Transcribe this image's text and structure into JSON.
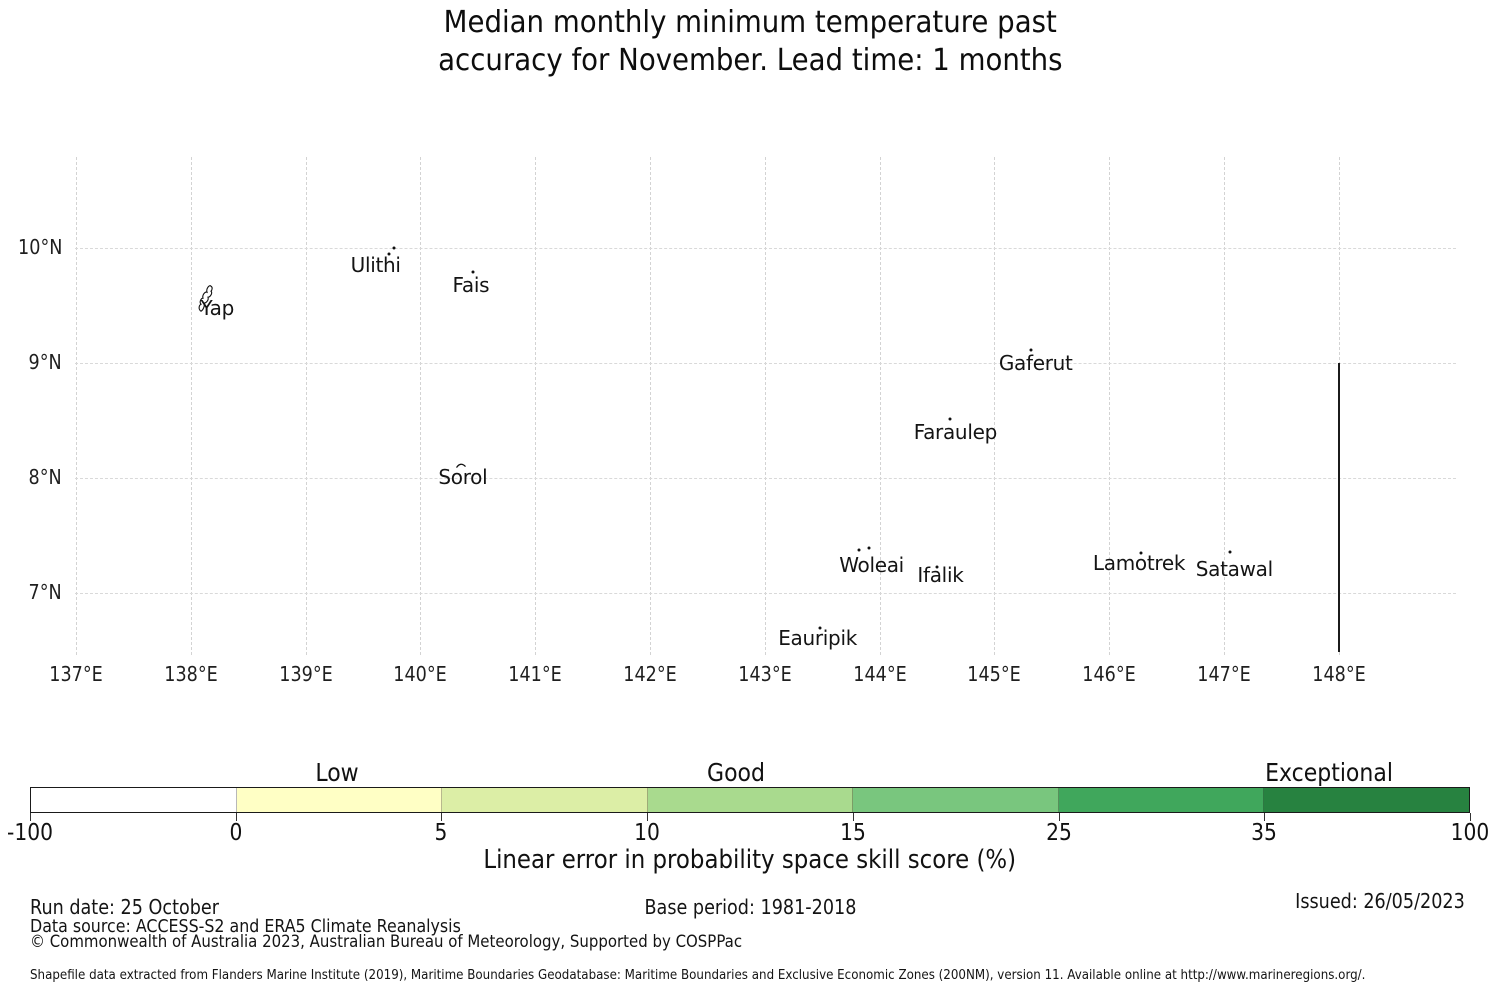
{
  "title": {
    "line1": "Median monthly minimum temperature past",
    "line2": "accuracy for November. Lead time: 1 months"
  },
  "chart_data": {
    "type": "map",
    "title": "Median monthly minimum temperature past accuracy for November. Lead time: 1 months",
    "x_ticks": [
      "137°E",
      "138°E",
      "139°E",
      "140°E",
      "141°E",
      "142°E",
      "143°E",
      "144°E",
      "145°E",
      "146°E",
      "147°E",
      "148°E"
    ],
    "y_ticks": [
      "10°N",
      "9°N",
      "8°N",
      "7°N"
    ],
    "lon_range": [
      137,
      148
    ],
    "lat_range": [
      7,
      10
    ],
    "grid": true,
    "islands": [
      {
        "name": "Yap",
        "label": {
          "lon": 138.23,
          "lat": 9.48
        },
        "shape": "yap-outline",
        "shape_pos": {
          "lon": 138.13,
          "lat": 9.53
        },
        "dots": []
      },
      {
        "name": "Ulithi",
        "label": {
          "lon": 139.61,
          "lat": 9.85
        },
        "dots": [
          {
            "lon": 139.77,
            "lat": 10.0
          },
          {
            "lon": 139.73,
            "lat": 9.95
          }
        ]
      },
      {
        "name": "Fais",
        "label": {
          "lon": 140.44,
          "lat": 9.68
        },
        "dots": [
          {
            "lon": 140.46,
            "lat": 9.79
          }
        ]
      },
      {
        "name": "Sorol",
        "label": {
          "lon": 140.37,
          "lat": 8.01
        },
        "shape": "arc",
        "shape_pos": {
          "lon": 140.35,
          "lat": 8.12
        },
        "dots": []
      },
      {
        "name": "Gaferut",
        "label": {
          "lon": 145.36,
          "lat": 9.0
        },
        "dots": [
          {
            "lon": 145.32,
            "lat": 9.11
          }
        ]
      },
      {
        "name": "Faraulep",
        "label": {
          "lon": 144.66,
          "lat": 8.4
        },
        "dots": [
          {
            "lon": 144.61,
            "lat": 8.51
          }
        ]
      },
      {
        "name": "Woleai",
        "label": {
          "lon": 143.93,
          "lat": 7.24
        },
        "dots": [
          {
            "lon": 143.82,
            "lat": 7.37
          },
          {
            "lon": 143.91,
            "lat": 7.39
          }
        ]
      },
      {
        "name": "Ifalik",
        "label": {
          "lon": 144.53,
          "lat": 7.16
        },
        "dots": [
          {
            "lon": 144.5,
            "lat": 7.23
          }
        ]
      },
      {
        "name": "Lamotrek",
        "label": {
          "lon": 146.26,
          "lat": 7.26
        },
        "dots": [
          {
            "lon": 146.28,
            "lat": 7.35
          }
        ]
      },
      {
        "name": "Satawal",
        "label": {
          "lon": 147.09,
          "lat": 7.21
        },
        "dots": [
          {
            "lon": 147.05,
            "lat": 7.36
          }
        ]
      },
      {
        "name": "Eauripik",
        "label": {
          "lon": 143.46,
          "lat": 6.61
        },
        "dots": [
          {
            "lon": 143.48,
            "lat": 6.7
          }
        ]
      }
    ],
    "eez_boundary": {
      "lon": 148,
      "lat_top": 9.0,
      "lat_bottom": 6.49
    },
    "colorbar": {
      "label": "Linear error in probability space skill score (%)",
      "boundaries": [
        -100,
        0,
        5,
        10,
        15,
        25,
        35,
        100
      ],
      "tick_labels": [
        "-100",
        "0",
        "5",
        "10",
        "15",
        "25",
        "35",
        "100"
      ],
      "segment_colors": [
        "#ffffff",
        "#ffffc5",
        "#dceea6",
        "#a9da8e",
        "#79c67e",
        "#40a75c",
        "#278240"
      ],
      "categories": [
        {
          "label": "Low",
          "pos": 0.213
        },
        {
          "label": "Good",
          "pos": 0.49
        },
        {
          "label": "Exceptional",
          "pos": 0.902
        }
      ]
    }
  },
  "footer": {
    "run_date": "Run date: 25 October",
    "base_period": "Base period: 1981-2018",
    "issued": "Issued: 26/05/2023",
    "data_source": "Data source: ACCESS-S2 and ERA5 Climate Reanalysis",
    "copyright": "© Commonwealth of Australia 2023, Australian Bureau of Meteorology, Supported by COSPPac",
    "shapefile_note": "Shapefile data extracted from Flanders Marine Institute (2019), Maritime Boundaries Geodatabase: Maritime Boundaries and Exclusive Economic Zones (200NM), version 11. Available online at http://www.marineregions.org/."
  }
}
